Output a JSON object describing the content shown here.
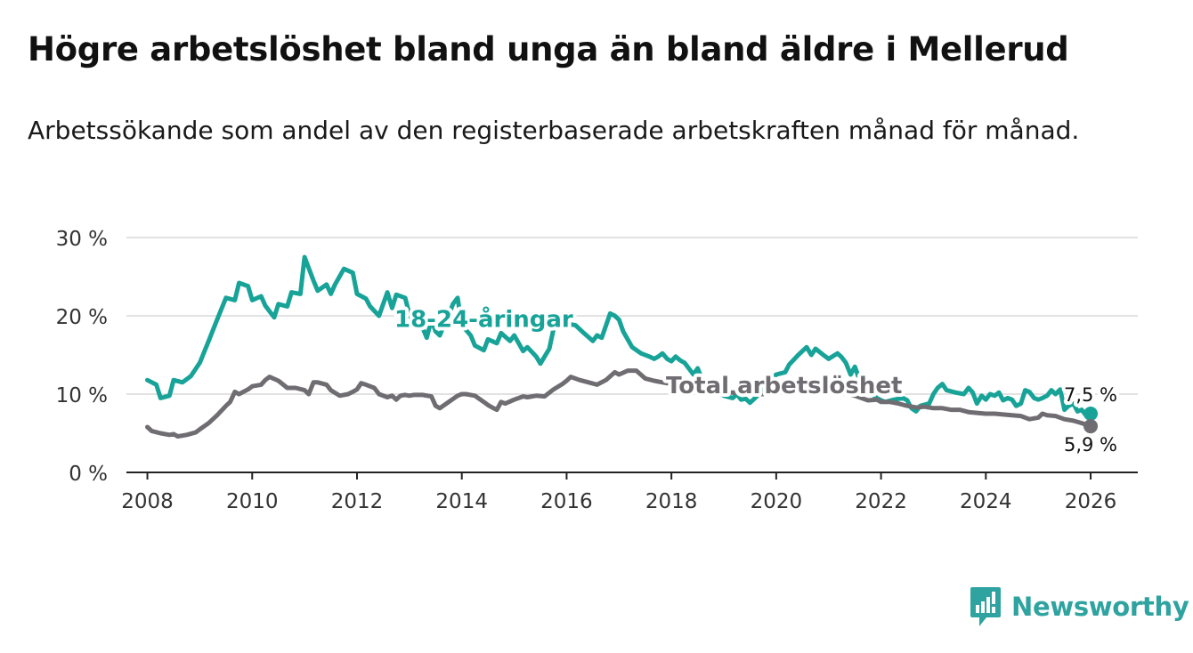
{
  "title": "Högre arbetslöshet bland unga än bland äldre i Mellerud",
  "subtitle": "Arbetssökande som andel av den registerbaserade arbetskraften månad för månad.",
  "brand": {
    "name": "Newsworthy",
    "color": "#2ea3a0",
    "icon": "bar-chart-logo-icon"
  },
  "chart_data": {
    "type": "line",
    "title": "Högre arbetslöshet bland unga än bland äldre i Mellerud",
    "xlabel": "",
    "ylabel": "",
    "xlim": [
      2007.6,
      2026.9
    ],
    "ylim": [
      0,
      30
    ],
    "x_ticks": [
      2008,
      2010,
      2012,
      2014,
      2016,
      2018,
      2020,
      2022,
      2024,
      2026
    ],
    "x_tick_labels": [
      "2008",
      "2010",
      "2012",
      "2014",
      "2016",
      "2018",
      "2020",
      "2022",
      "2024",
      "2026"
    ],
    "y_ticks": [
      0,
      10,
      20,
      30
    ],
    "y_tick_labels": [
      "0 %",
      "10 %",
      "20 %",
      "30 %"
    ],
    "grid": true,
    "series": [
      {
        "name": "18-24-åringar",
        "label": "18-24-åringar",
        "color": "#17a398",
        "end_label": "7,5 %",
        "points": [
          [
            2008.0,
            11.8
          ],
          [
            2008.17,
            11.2
          ],
          [
            2008.25,
            9.5
          ],
          [
            2008.42,
            9.8
          ],
          [
            2008.5,
            11.8
          ],
          [
            2008.67,
            11.5
          ],
          [
            2008.83,
            12.3
          ],
          [
            2009.0,
            14.0
          ],
          [
            2009.17,
            16.8
          ],
          [
            2009.33,
            19.5
          ],
          [
            2009.5,
            22.3
          ],
          [
            2009.67,
            22.0
          ],
          [
            2009.75,
            24.2
          ],
          [
            2009.92,
            23.8
          ],
          [
            2010.0,
            22.0
          ],
          [
            2010.17,
            22.5
          ],
          [
            2010.25,
            21.3
          ],
          [
            2010.42,
            19.8
          ],
          [
            2010.5,
            21.5
          ],
          [
            2010.67,
            21.2
          ],
          [
            2010.75,
            23.0
          ],
          [
            2010.92,
            22.8
          ],
          [
            2011.0,
            27.5
          ],
          [
            2011.17,
            24.5
          ],
          [
            2011.25,
            23.2
          ],
          [
            2011.42,
            24.0
          ],
          [
            2011.5,
            22.8
          ],
          [
            2011.58,
            24.0
          ],
          [
            2011.75,
            26.0
          ],
          [
            2011.92,
            25.5
          ],
          [
            2012.0,
            22.8
          ],
          [
            2012.17,
            22.2
          ],
          [
            2012.25,
            21.2
          ],
          [
            2012.42,
            20.0
          ],
          [
            2012.5,
            21.5
          ],
          [
            2012.58,
            23.0
          ],
          [
            2012.67,
            21.0
          ],
          [
            2012.75,
            22.7
          ],
          [
            2012.92,
            22.3
          ],
          [
            2013.0,
            20.2
          ],
          [
            2013.08,
            19.0
          ],
          [
            2013.25,
            18.5
          ],
          [
            2013.33,
            17.2
          ],
          [
            2013.42,
            19.5
          ],
          [
            2013.5,
            18.0
          ],
          [
            2013.58,
            17.5
          ],
          [
            2013.67,
            19.0
          ],
          [
            2013.75,
            20.0
          ],
          [
            2013.83,
            21.5
          ],
          [
            2013.92,
            22.3
          ],
          [
            2014.0,
            18.8
          ],
          [
            2014.17,
            17.5
          ],
          [
            2014.25,
            16.2
          ],
          [
            2014.42,
            15.6
          ],
          [
            2014.5,
            17.0
          ],
          [
            2014.67,
            16.5
          ],
          [
            2014.75,
            17.8
          ],
          [
            2014.92,
            16.8
          ],
          [
            2015.0,
            17.5
          ],
          [
            2015.17,
            15.5
          ],
          [
            2015.25,
            16.0
          ],
          [
            2015.42,
            14.8
          ],
          [
            2015.5,
            13.9
          ],
          [
            2015.67,
            15.8
          ],
          [
            2015.75,
            18.3
          ],
          [
            2015.92,
            19.2
          ],
          [
            2016.0,
            19.0
          ],
          [
            2016.17,
            18.8
          ],
          [
            2016.33,
            17.8
          ],
          [
            2016.5,
            16.8
          ],
          [
            2016.58,
            17.5
          ],
          [
            2016.67,
            17.2
          ],
          [
            2016.83,
            20.3
          ],
          [
            2016.92,
            20.0
          ],
          [
            2017.0,
            19.5
          ],
          [
            2017.08,
            18.0
          ],
          [
            2017.25,
            16.0
          ],
          [
            2017.42,
            15.2
          ],
          [
            2017.58,
            14.8
          ],
          [
            2017.67,
            14.5
          ],
          [
            2017.75,
            14.8
          ],
          [
            2017.83,
            15.2
          ],
          [
            2017.92,
            14.5
          ],
          [
            2018.0,
            14.2
          ],
          [
            2018.08,
            14.8
          ],
          [
            2018.17,
            14.3
          ],
          [
            2018.25,
            14.0
          ],
          [
            2018.42,
            12.5
          ],
          [
            2018.5,
            13.3
          ],
          [
            2018.58,
            12.0
          ],
          [
            2018.67,
            11.3
          ],
          [
            2018.75,
            10.8
          ],
          [
            2018.92,
            10.3
          ],
          [
            2019.0,
            9.8
          ],
          [
            2019.17,
            9.5
          ],
          [
            2019.25,
            10.0
          ],
          [
            2019.33,
            9.3
          ],
          [
            2019.42,
            9.4
          ],
          [
            2019.5,
            8.9
          ],
          [
            2019.58,
            9.4
          ],
          [
            2019.67,
            10.0
          ],
          [
            2019.75,
            11.0
          ],
          [
            2019.92,
            12.0
          ],
          [
            2020.0,
            12.5
          ],
          [
            2020.17,
            12.8
          ],
          [
            2020.25,
            13.8
          ],
          [
            2020.42,
            15.0
          ],
          [
            2020.58,
            16.0
          ],
          [
            2020.67,
            15.0
          ],
          [
            2020.75,
            15.8
          ],
          [
            2020.92,
            14.9
          ],
          [
            2021.0,
            14.5
          ],
          [
            2021.17,
            15.2
          ],
          [
            2021.25,
            14.7
          ],
          [
            2021.33,
            14.0
          ],
          [
            2021.42,
            12.5
          ],
          [
            2021.5,
            13.5
          ],
          [
            2021.58,
            12.0
          ],
          [
            2021.67,
            11.0
          ],
          [
            2021.75,
            10.5
          ],
          [
            2021.92,
            9.5
          ],
          [
            2022.0,
            9.2
          ],
          [
            2022.08,
            9.0
          ],
          [
            2022.25,
            9.3
          ],
          [
            2022.42,
            9.5
          ],
          [
            2022.5,
            9.2
          ],
          [
            2022.58,
            8.2
          ],
          [
            2022.67,
            7.8
          ],
          [
            2022.75,
            8.5
          ],
          [
            2022.92,
            8.8
          ],
          [
            2023.0,
            10.0
          ],
          [
            2023.08,
            10.8
          ],
          [
            2023.17,
            11.3
          ],
          [
            2023.25,
            10.5
          ],
          [
            2023.42,
            10.2
          ],
          [
            2023.58,
            10.0
          ],
          [
            2023.67,
            10.8
          ],
          [
            2023.75,
            10.2
          ],
          [
            2023.83,
            8.8
          ],
          [
            2023.92,
            9.8
          ],
          [
            2024.0,
            9.3
          ],
          [
            2024.08,
            10.0
          ],
          [
            2024.17,
            9.8
          ],
          [
            2024.25,
            10.2
          ],
          [
            2024.33,
            9.2
          ],
          [
            2024.42,
            9.5
          ],
          [
            2024.5,
            9.3
          ],
          [
            2024.58,
            8.5
          ],
          [
            2024.67,
            8.8
          ],
          [
            2024.75,
            10.5
          ],
          [
            2024.83,
            10.3
          ],
          [
            2024.92,
            9.5
          ],
          [
            2025.0,
            9.3
          ],
          [
            2025.08,
            9.5
          ],
          [
            2025.17,
            9.8
          ],
          [
            2025.25,
            10.5
          ],
          [
            2025.33,
            10.0
          ],
          [
            2025.42,
            10.6
          ],
          [
            2025.5,
            8.0
          ],
          [
            2025.58,
            8.5
          ],
          [
            2025.67,
            8.8
          ],
          [
            2025.75,
            7.8
          ],
          [
            2025.83,
            8.0
          ],
          [
            2025.92,
            7.2
          ],
          [
            2026.0,
            7.5
          ]
        ]
      },
      {
        "name": "Total arbetslöshet",
        "label": "Total arbetslöshet",
        "color": "#6f6d72",
        "end_label": "5,9 %",
        "points": [
          [
            2008.0,
            5.8
          ],
          [
            2008.08,
            5.3
          ],
          [
            2008.25,
            5.0
          ],
          [
            2008.42,
            4.8
          ],
          [
            2008.5,
            4.9
          ],
          [
            2008.58,
            4.6
          ],
          [
            2008.75,
            4.8
          ],
          [
            2008.92,
            5.1
          ],
          [
            2009.0,
            5.5
          ],
          [
            2009.17,
            6.3
          ],
          [
            2009.33,
            7.3
          ],
          [
            2009.5,
            8.5
          ],
          [
            2009.58,
            9.0
          ],
          [
            2009.67,
            10.3
          ],
          [
            2009.75,
            10.0
          ],
          [
            2009.92,
            10.6
          ],
          [
            2010.0,
            11.0
          ],
          [
            2010.17,
            11.2
          ],
          [
            2010.25,
            11.8
          ],
          [
            2010.33,
            12.2
          ],
          [
            2010.5,
            11.7
          ],
          [
            2010.67,
            10.8
          ],
          [
            2010.83,
            10.8
          ],
          [
            2011.0,
            10.5
          ],
          [
            2011.08,
            10.0
          ],
          [
            2011.17,
            11.5
          ],
          [
            2011.25,
            11.5
          ],
          [
            2011.42,
            11.2
          ],
          [
            2011.5,
            10.5
          ],
          [
            2011.67,
            9.8
          ],
          [
            2011.83,
            10.0
          ],
          [
            2011.92,
            10.3
          ],
          [
            2012.0,
            10.6
          ],
          [
            2012.08,
            11.4
          ],
          [
            2012.17,
            11.2
          ],
          [
            2012.33,
            10.8
          ],
          [
            2012.42,
            10.0
          ],
          [
            2012.58,
            9.6
          ],
          [
            2012.67,
            9.8
          ],
          [
            2012.75,
            9.3
          ],
          [
            2012.83,
            9.8
          ],
          [
            2012.92,
            9.9
          ],
          [
            2013.0,
            9.8
          ],
          [
            2013.08,
            9.9
          ],
          [
            2013.25,
            9.9
          ],
          [
            2013.42,
            9.7
          ],
          [
            2013.5,
            8.5
          ],
          [
            2013.58,
            8.2
          ],
          [
            2013.75,
            9.0
          ],
          [
            2013.92,
            9.8
          ],
          [
            2014.0,
            10.0
          ],
          [
            2014.08,
            10.0
          ],
          [
            2014.25,
            9.8
          ],
          [
            2014.42,
            9.0
          ],
          [
            2014.5,
            8.6
          ],
          [
            2014.58,
            8.3
          ],
          [
            2014.67,
            8.0
          ],
          [
            2014.75,
            9.0
          ],
          [
            2014.83,
            8.8
          ],
          [
            2015.0,
            9.3
          ],
          [
            2015.17,
            9.7
          ],
          [
            2015.25,
            9.6
          ],
          [
            2015.42,
            9.8
          ],
          [
            2015.58,
            9.7
          ],
          [
            2015.75,
            10.6
          ],
          [
            2015.92,
            11.3
          ],
          [
            2016.0,
            11.7
          ],
          [
            2016.08,
            12.2
          ],
          [
            2016.25,
            11.8
          ],
          [
            2016.42,
            11.5
          ],
          [
            2016.58,
            11.2
          ],
          [
            2016.75,
            11.8
          ],
          [
            2016.92,
            12.8
          ],
          [
            2017.0,
            12.5
          ],
          [
            2017.17,
            13.0
          ],
          [
            2017.33,
            13.0
          ],
          [
            2017.5,
            12.0
          ],
          [
            2017.67,
            11.7
          ],
          [
            2017.83,
            11.5
          ],
          [
            2018.0,
            11.3
          ],
          [
            2018.25,
            11.0
          ],
          [
            2018.5,
            10.8
          ],
          [
            2018.75,
            10.5
          ],
          [
            2019.0,
            10.2
          ],
          [
            2019.25,
            10.2
          ],
          [
            2019.5,
            10.0
          ],
          [
            2019.75,
            10.0
          ],
          [
            2020.0,
            10.5
          ],
          [
            2020.25,
            11.0
          ],
          [
            2020.5,
            11.2
          ],
          [
            2020.75,
            11.0
          ],
          [
            2021.0,
            10.5
          ],
          [
            2021.25,
            10.2
          ],
          [
            2021.5,
            9.8
          ],
          [
            2021.75,
            9.2
          ],
          [
            2021.92,
            9.3
          ],
          [
            2022.0,
            9.0
          ],
          [
            2022.17,
            9.0
          ],
          [
            2022.33,
            8.8
          ],
          [
            2022.5,
            8.5
          ],
          [
            2022.67,
            8.3
          ],
          [
            2022.83,
            8.4
          ],
          [
            2023.0,
            8.2
          ],
          [
            2023.17,
            8.2
          ],
          [
            2023.33,
            8.0
          ],
          [
            2023.5,
            8.0
          ],
          [
            2023.67,
            7.7
          ],
          [
            2023.83,
            7.6
          ],
          [
            2024.0,
            7.5
          ],
          [
            2024.17,
            7.5
          ],
          [
            2024.33,
            7.4
          ],
          [
            2024.5,
            7.3
          ],
          [
            2024.67,
            7.2
          ],
          [
            2024.83,
            6.8
          ],
          [
            2025.0,
            7.0
          ],
          [
            2025.08,
            7.5
          ],
          [
            2025.17,
            7.3
          ],
          [
            2025.33,
            7.2
          ],
          [
            2025.5,
            6.8
          ],
          [
            2025.67,
            6.6
          ],
          [
            2025.83,
            6.3
          ],
          [
            2026.0,
            5.9
          ]
        ]
      }
    ]
  }
}
